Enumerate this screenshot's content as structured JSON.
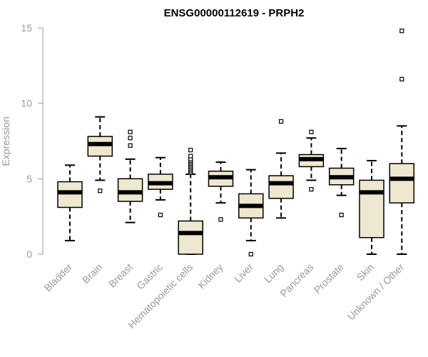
{
  "chart_data": {
    "type": "boxplot",
    "title": "ENSG00000112619 - PRPH2",
    "ylabel": "Expression",
    "xlabel": "",
    "ylim": [
      0,
      15
    ],
    "yticks": [
      0,
      5,
      10,
      15
    ],
    "colors": {
      "box_fill": "#efe8d0",
      "stroke": "#000000",
      "axis": "#999999"
    },
    "categories": [
      "Bladder",
      "Brain",
      "Breast",
      "Gastric",
      "Hematopoietic cells",
      "Kidney",
      "Liver",
      "Lung",
      "Pancreas",
      "Prostate",
      "Skin",
      "Unknown / Other"
    ],
    "boxes": [
      {
        "whisker_low": 0.9,
        "q1": 3.1,
        "median": 4.1,
        "q3": 4.8,
        "whisker_high": 5.9,
        "outliers": []
      },
      {
        "whisker_low": 4.9,
        "q1": 6.5,
        "median": 7.3,
        "q3": 7.8,
        "whisker_high": 9.1,
        "outliers": [
          4.2
        ]
      },
      {
        "whisker_low": 2.1,
        "q1": 3.5,
        "median": 4.1,
        "q3": 5.0,
        "whisker_high": 6.3,
        "outliers": [
          7.2,
          7.7,
          8.1
        ]
      },
      {
        "whisker_low": 3.6,
        "q1": 4.3,
        "median": 4.7,
        "q3": 5.3,
        "whisker_high": 6.4,
        "outliers": [
          2.6
        ]
      },
      {
        "whisker_low": 0.0,
        "q1": 0.0,
        "median": 1.4,
        "q3": 2.2,
        "whisker_high": 5.3,
        "outliers": [
          5.4,
          5.5,
          5.6,
          5.7,
          5.8,
          5.9,
          6.0,
          6.1,
          6.2,
          6.3,
          6.5,
          6.9
        ]
      },
      {
        "whisker_low": 3.4,
        "q1": 4.5,
        "median": 5.1,
        "q3": 5.5,
        "whisker_high": 6.1,
        "outliers": [
          2.3
        ]
      },
      {
        "whisker_low": 0.9,
        "q1": 2.4,
        "median": 3.2,
        "q3": 4.0,
        "whisker_high": 5.6,
        "outliers": [
          0.0
        ]
      },
      {
        "whisker_low": 2.4,
        "q1": 3.7,
        "median": 4.7,
        "q3": 5.2,
        "whisker_high": 6.7,
        "outliers": [
          8.8
        ]
      },
      {
        "whisker_low": 4.9,
        "q1": 5.8,
        "median": 6.3,
        "q3": 6.6,
        "whisker_high": 7.7,
        "outliers": [
          4.3,
          8.1
        ]
      },
      {
        "whisker_low": 3.9,
        "q1": 4.6,
        "median": 5.1,
        "q3": 5.7,
        "whisker_high": 7.0,
        "outliers": [
          2.6
        ]
      },
      {
        "whisker_low": 0.0,
        "q1": 1.1,
        "median": 4.1,
        "q3": 4.9,
        "whisker_high": 6.2,
        "outliers": []
      },
      {
        "whisker_low": 0.0,
        "q1": 3.4,
        "median": 5.0,
        "q3": 6.0,
        "whisker_high": 8.5,
        "outliers": [
          11.6,
          14.8
        ]
      }
    ],
    "grid": false,
    "legend": "none"
  }
}
